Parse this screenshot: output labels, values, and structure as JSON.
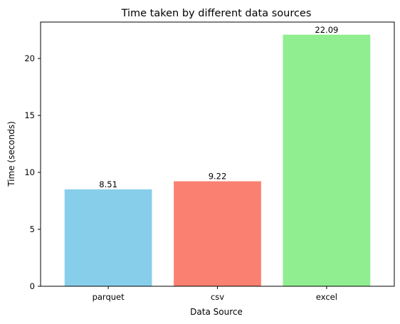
{
  "chart_data": {
    "type": "bar",
    "title": "Time taken by different data sources",
    "xlabel": "Data Source",
    "ylabel": "Time (seconds)",
    "categories": [
      "parquet",
      "csv",
      "excel"
    ],
    "values": [
      8.51,
      9.22,
      22.09
    ],
    "value_labels": [
      "8.51",
      "9.22",
      "22.09"
    ],
    "colors": [
      "#87ceeb",
      "#fa8072",
      "#90ee90"
    ],
    "ylim": [
      0,
      23.2
    ],
    "yticks": [
      0,
      5,
      10,
      15,
      20
    ],
    "ytick_labels": [
      "0",
      "5",
      "10",
      "15",
      "20"
    ],
    "grid": false,
    "legend": "none"
  }
}
